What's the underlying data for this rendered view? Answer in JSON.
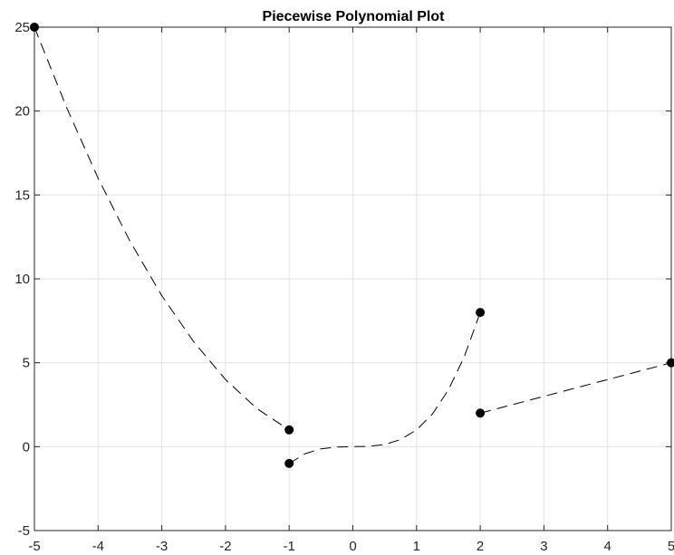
{
  "chart_data": {
    "type": "line",
    "title": "Piecewise Polynomial Plot",
    "xlabel": "",
    "ylabel": "",
    "xlim": [
      -5,
      5
    ],
    "ylim": [
      -5,
      25
    ],
    "xticks": [
      -5,
      -4,
      -3,
      -2,
      -1,
      0,
      1,
      2,
      3,
      4,
      5
    ],
    "yticks": [
      -5,
      0,
      5,
      10,
      15,
      20,
      25
    ],
    "x_tick_labels": [
      "-5",
      "-4",
      "-3",
      "-2",
      "-1",
      "0",
      "1",
      "2",
      "3",
      "4",
      "5"
    ],
    "y_tick_labels": [
      "-5",
      "0",
      "5",
      "10",
      "15",
      "20",
      "25"
    ],
    "grid": true,
    "line_style": "dashed",
    "line_color": "#000000",
    "marker_color": "#000000",
    "series": [
      {
        "x": [
          -5,
          -4.5,
          -4,
          -3.5,
          -3,
          -2.5,
          -2,
          -1.5,
          -1
        ],
        "y": [
          25,
          20.25,
          16,
          12.25,
          9,
          6.25,
          4,
          2.25,
          1
        ],
        "endpoints": [
          [
            -5,
            25
          ],
          [
            -1,
            1
          ]
        ]
      },
      {
        "x": [
          -1,
          -0.75,
          -0.5,
          -0.25,
          0,
          0.25,
          0.5,
          0.75,
          1,
          1.25,
          1.5,
          1.75,
          2
        ],
        "y": [
          -1,
          -0.42,
          -0.13,
          -0.02,
          0,
          0.02,
          0.13,
          0.42,
          1,
          1.95,
          3.38,
          5.36,
          8
        ],
        "endpoints": [
          [
            -1,
            -1
          ],
          [
            2,
            8
          ]
        ]
      },
      {
        "x": [
          2,
          5
        ],
        "y": [
          2,
          5
        ],
        "endpoints": [
          [
            2,
            2
          ],
          [
            5,
            5
          ]
        ]
      }
    ]
  }
}
